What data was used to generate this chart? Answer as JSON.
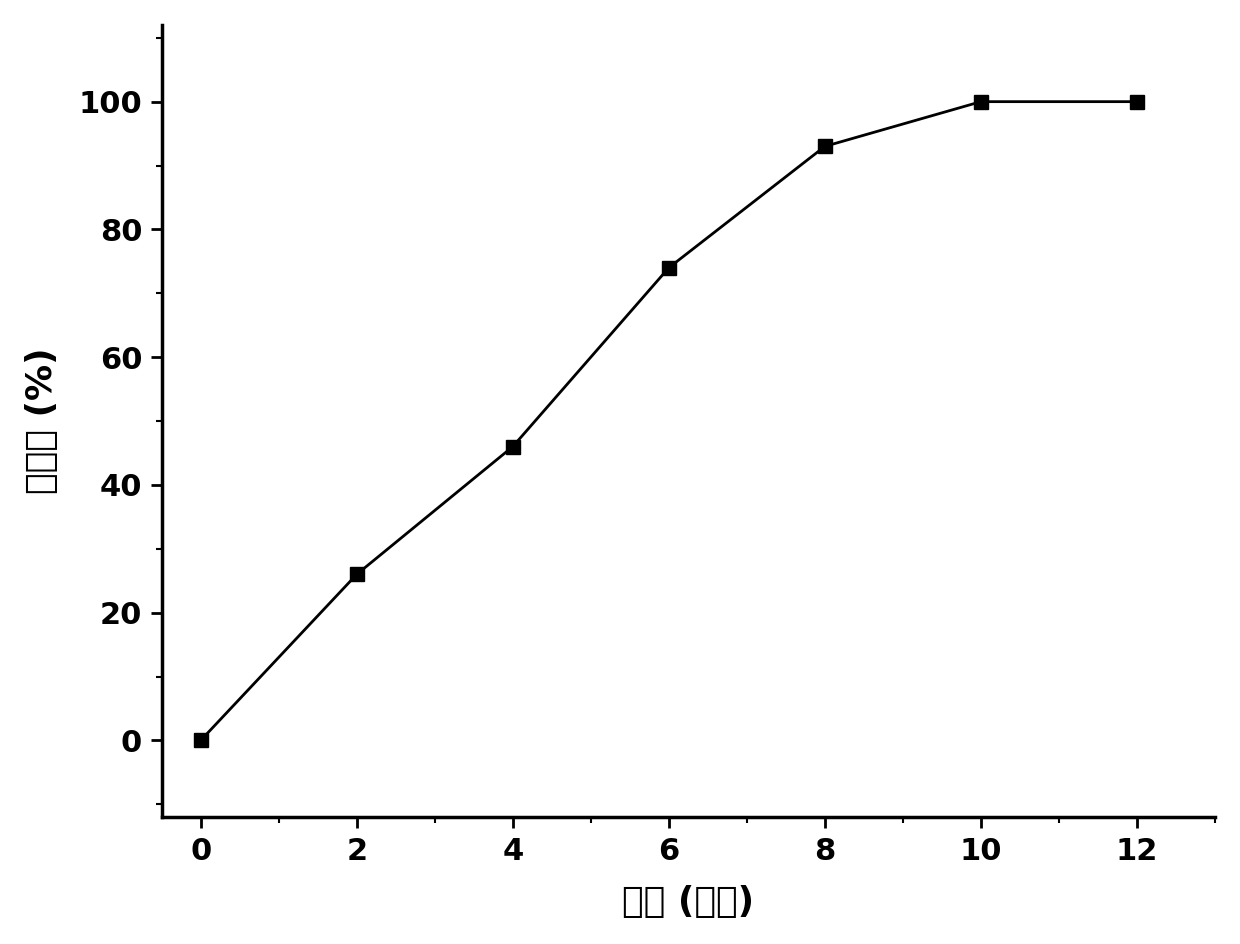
{
  "x": [
    0,
    2,
    4,
    6,
    8,
    10,
    12
  ],
  "y": [
    0,
    26,
    46,
    74,
    93,
    100,
    100
  ],
  "xlabel": "时间 (小时)",
  "ylabel": "去除率 (%)",
  "xlim": [
    -0.5,
    13
  ],
  "ylim": [
    -12,
    112
  ],
  "xticks": [
    0,
    2,
    4,
    6,
    8,
    10,
    12
  ],
  "yticks": [
    0,
    20,
    40,
    60,
    80,
    100
  ],
  "line_color": "#000000",
  "marker": "s",
  "marker_size": 10,
  "marker_color": "#000000",
  "line_width": 2.0,
  "background_color": "#ffffff",
  "xlabel_fontsize": 26,
  "ylabel_fontsize": 26,
  "tick_fontsize": 22,
  "spine_linewidth": 2.5
}
